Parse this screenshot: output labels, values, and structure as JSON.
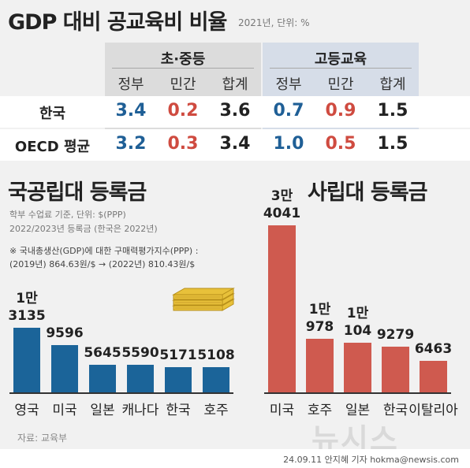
{
  "title": "GDP 대비 공교육비 비율",
  "title_note": "2021년, 단위: %",
  "table": {
    "groups": [
      "초·중등",
      "고등교육"
    ],
    "columns": [
      "정부",
      "민간",
      "합계",
      "정부",
      "민간",
      "합계"
    ],
    "rows": [
      {
        "label": "한국",
        "values": [
          "3.4",
          "0.2",
          "3.6",
          "0.7",
          "0.9",
          "1.5"
        ]
      },
      {
        "label": "OECD 평균",
        "values": [
          "3.2",
          "0.3",
          "3.4",
          "1.0",
          "0.5",
          "1.5"
        ]
      }
    ]
  },
  "public": {
    "title": "국공립대 등록금",
    "note1": "학부 수업료 기준, 단위: $(PPP)",
    "note2": "2022/2023년 등록금 (한국은 2022년)",
    "note3": "※ 국내총생산(GDP)에 대한 구매력평가지수(PPP) :",
    "note4": "(2019년) 864.63원/$ → (2022년) 810.43원/$"
  },
  "private": {
    "title": "사립대 등록금"
  },
  "chart_data": [
    {
      "type": "bar",
      "title": "국공립대 등록금",
      "ylabel": "",
      "categories": [
        "영국",
        "미국",
        "일본",
        "캐나다",
        "한국",
        "호주"
      ],
      "values": [
        13135,
        9596,
        5645,
        5590,
        5171,
        5108
      ],
      "value_labels": [
        [
          "1만",
          "3135"
        ],
        [
          "9596"
        ],
        [
          "5645"
        ],
        [
          "5590"
        ],
        [
          "5171"
        ],
        [
          "5108"
        ]
      ],
      "color": "#1b6499"
    },
    {
      "type": "bar",
      "title": "사립대 등록금",
      "ylabel": "",
      "categories": [
        "미국",
        "호주",
        "일본",
        "한국",
        "이탈리아"
      ],
      "values": [
        34041,
        10978,
        10104,
        9279,
        6463
      ],
      "value_labels": [
        [
          "3만",
          "4041"
        ],
        [
          "1만",
          "978"
        ],
        [
          "1만",
          "104"
        ],
        [
          "9279"
        ],
        [
          "6463"
        ]
      ],
      "color": "#cf5a4f"
    }
  ],
  "source": "자료: 교육부",
  "credit": "24.09.11 안지혜 기자 hokma@newsis.com",
  "watermark": "뉴시스",
  "icon": "money-stack-icon"
}
